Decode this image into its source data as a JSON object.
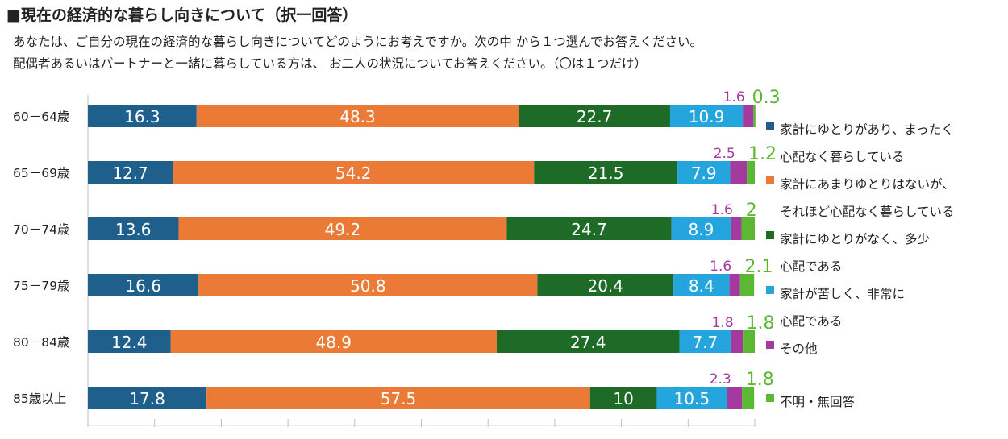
{
  "header": {
    "title": "■現在の経済的な暮らし向きについて（択一回答）",
    "description_line1": "あなたは、ご自分の現在の経済的な暮らし向きについてどのようにお考えですか。次の中 から１つ選んでお答えください。",
    "description_line2": "配偶者あるいはパートナーと一緒に暮らしている方は、 お二人の状況についてお答えください。（〇は１つだけ）"
  },
  "chart_data": {
    "type": "bar",
    "orientation": "horizontal",
    "stacked": true,
    "xlim": [
      0,
      100
    ],
    "grid": false,
    "legend_position": "right",
    "categories": [
      "60－64歳",
      "65－69歳",
      "70－74歳",
      "75－79歳",
      "80－84歳",
      "85歳以上"
    ],
    "series": [
      {
        "name": "家計にゆとりがあり、まったく心配なく暮らしている",
        "legend_lines": [
          "家計にゆとりがあり、まったく",
          "心配なく暮らしている"
        ],
        "color": "#1f5f8b",
        "values": [
          16.3,
          12.7,
          13.6,
          16.6,
          12.4,
          17.8
        ]
      },
      {
        "name": "家計にあまりゆとりはないが、それほど心配なく暮らしている",
        "legend_lines": [
          "家計にあまりゆとりはないが、",
          "それほど心配なく暮らしている"
        ],
        "color": "#ea7a35",
        "values": [
          48.3,
          54.2,
          49.2,
          50.8,
          48.9,
          57.5
        ]
      },
      {
        "name": "家計にゆとりがなく、多少心配である",
        "legend_lines": [
          "家計にゆとりがなく、多少",
          "心配である"
        ],
        "color": "#1e6b28",
        "values": [
          22.7,
          21.5,
          24.7,
          20.4,
          27.4,
          10
        ]
      },
      {
        "name": "家計が苦しく、非常に心配である",
        "legend_lines": [
          "家計が苦しく、非常に",
          "心配である"
        ],
        "color": "#25a5de",
        "values": [
          10.9,
          7.9,
          8.9,
          8.4,
          7.7,
          10.5
        ]
      },
      {
        "name": "その他",
        "legend_lines": [
          "その他"
        ],
        "color": "#a43aa0",
        "values": [
          1.6,
          2.5,
          1.6,
          1.6,
          1.8,
          2.3
        ]
      },
      {
        "name": "不明・無回答",
        "legend_lines": [
          "不明・無回答"
        ],
        "color": "#5bb832",
        "values": [
          0.3,
          1.2,
          2,
          2.1,
          1.8,
          1.8
        ]
      }
    ],
    "data_labels": [
      [
        "16.3",
        "48.3",
        "22.7",
        "10.9",
        "1.6",
        "0.3"
      ],
      [
        "12.7",
        "54.2",
        "21.5",
        "7.9",
        "2.5",
        "1.2"
      ],
      [
        "13.6",
        "49.2",
        "24.7",
        "8.9",
        "1.6",
        "2"
      ],
      [
        "16.6",
        "50.8",
        "20.4",
        "8.4",
        "1.6",
        "2.1"
      ],
      [
        "12.4",
        "48.9",
        "27.4",
        "7.7",
        "1.8",
        "1.8"
      ],
      [
        "17.8",
        "57.5",
        "10",
        "10.5",
        "2.3",
        "1.8"
      ]
    ]
  }
}
